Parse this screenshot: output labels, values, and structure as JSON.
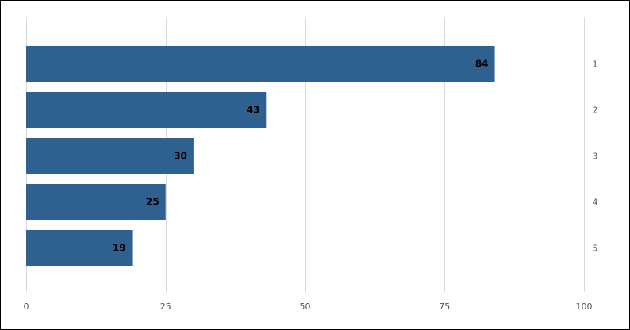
{
  "chart_data": {
    "type": "bar",
    "orientation": "horizontal",
    "categories": [
      "1",
      "2",
      "3",
      "4",
      "5"
    ],
    "values": [
      84,
      43,
      30,
      25,
      19
    ],
    "xlim": [
      0,
      100
    ],
    "x_ticks": [
      "0",
      "25",
      "50",
      "75",
      "100"
    ],
    "category_axis_position": "right",
    "grid": true,
    "data_labels": [
      "84",
      "43",
      "30",
      "25",
      "19"
    ],
    "title": "",
    "xlabel": "",
    "ylabel": "",
    "bar_color": "#2e6190",
    "grid_color": "#d9d9d9"
  }
}
